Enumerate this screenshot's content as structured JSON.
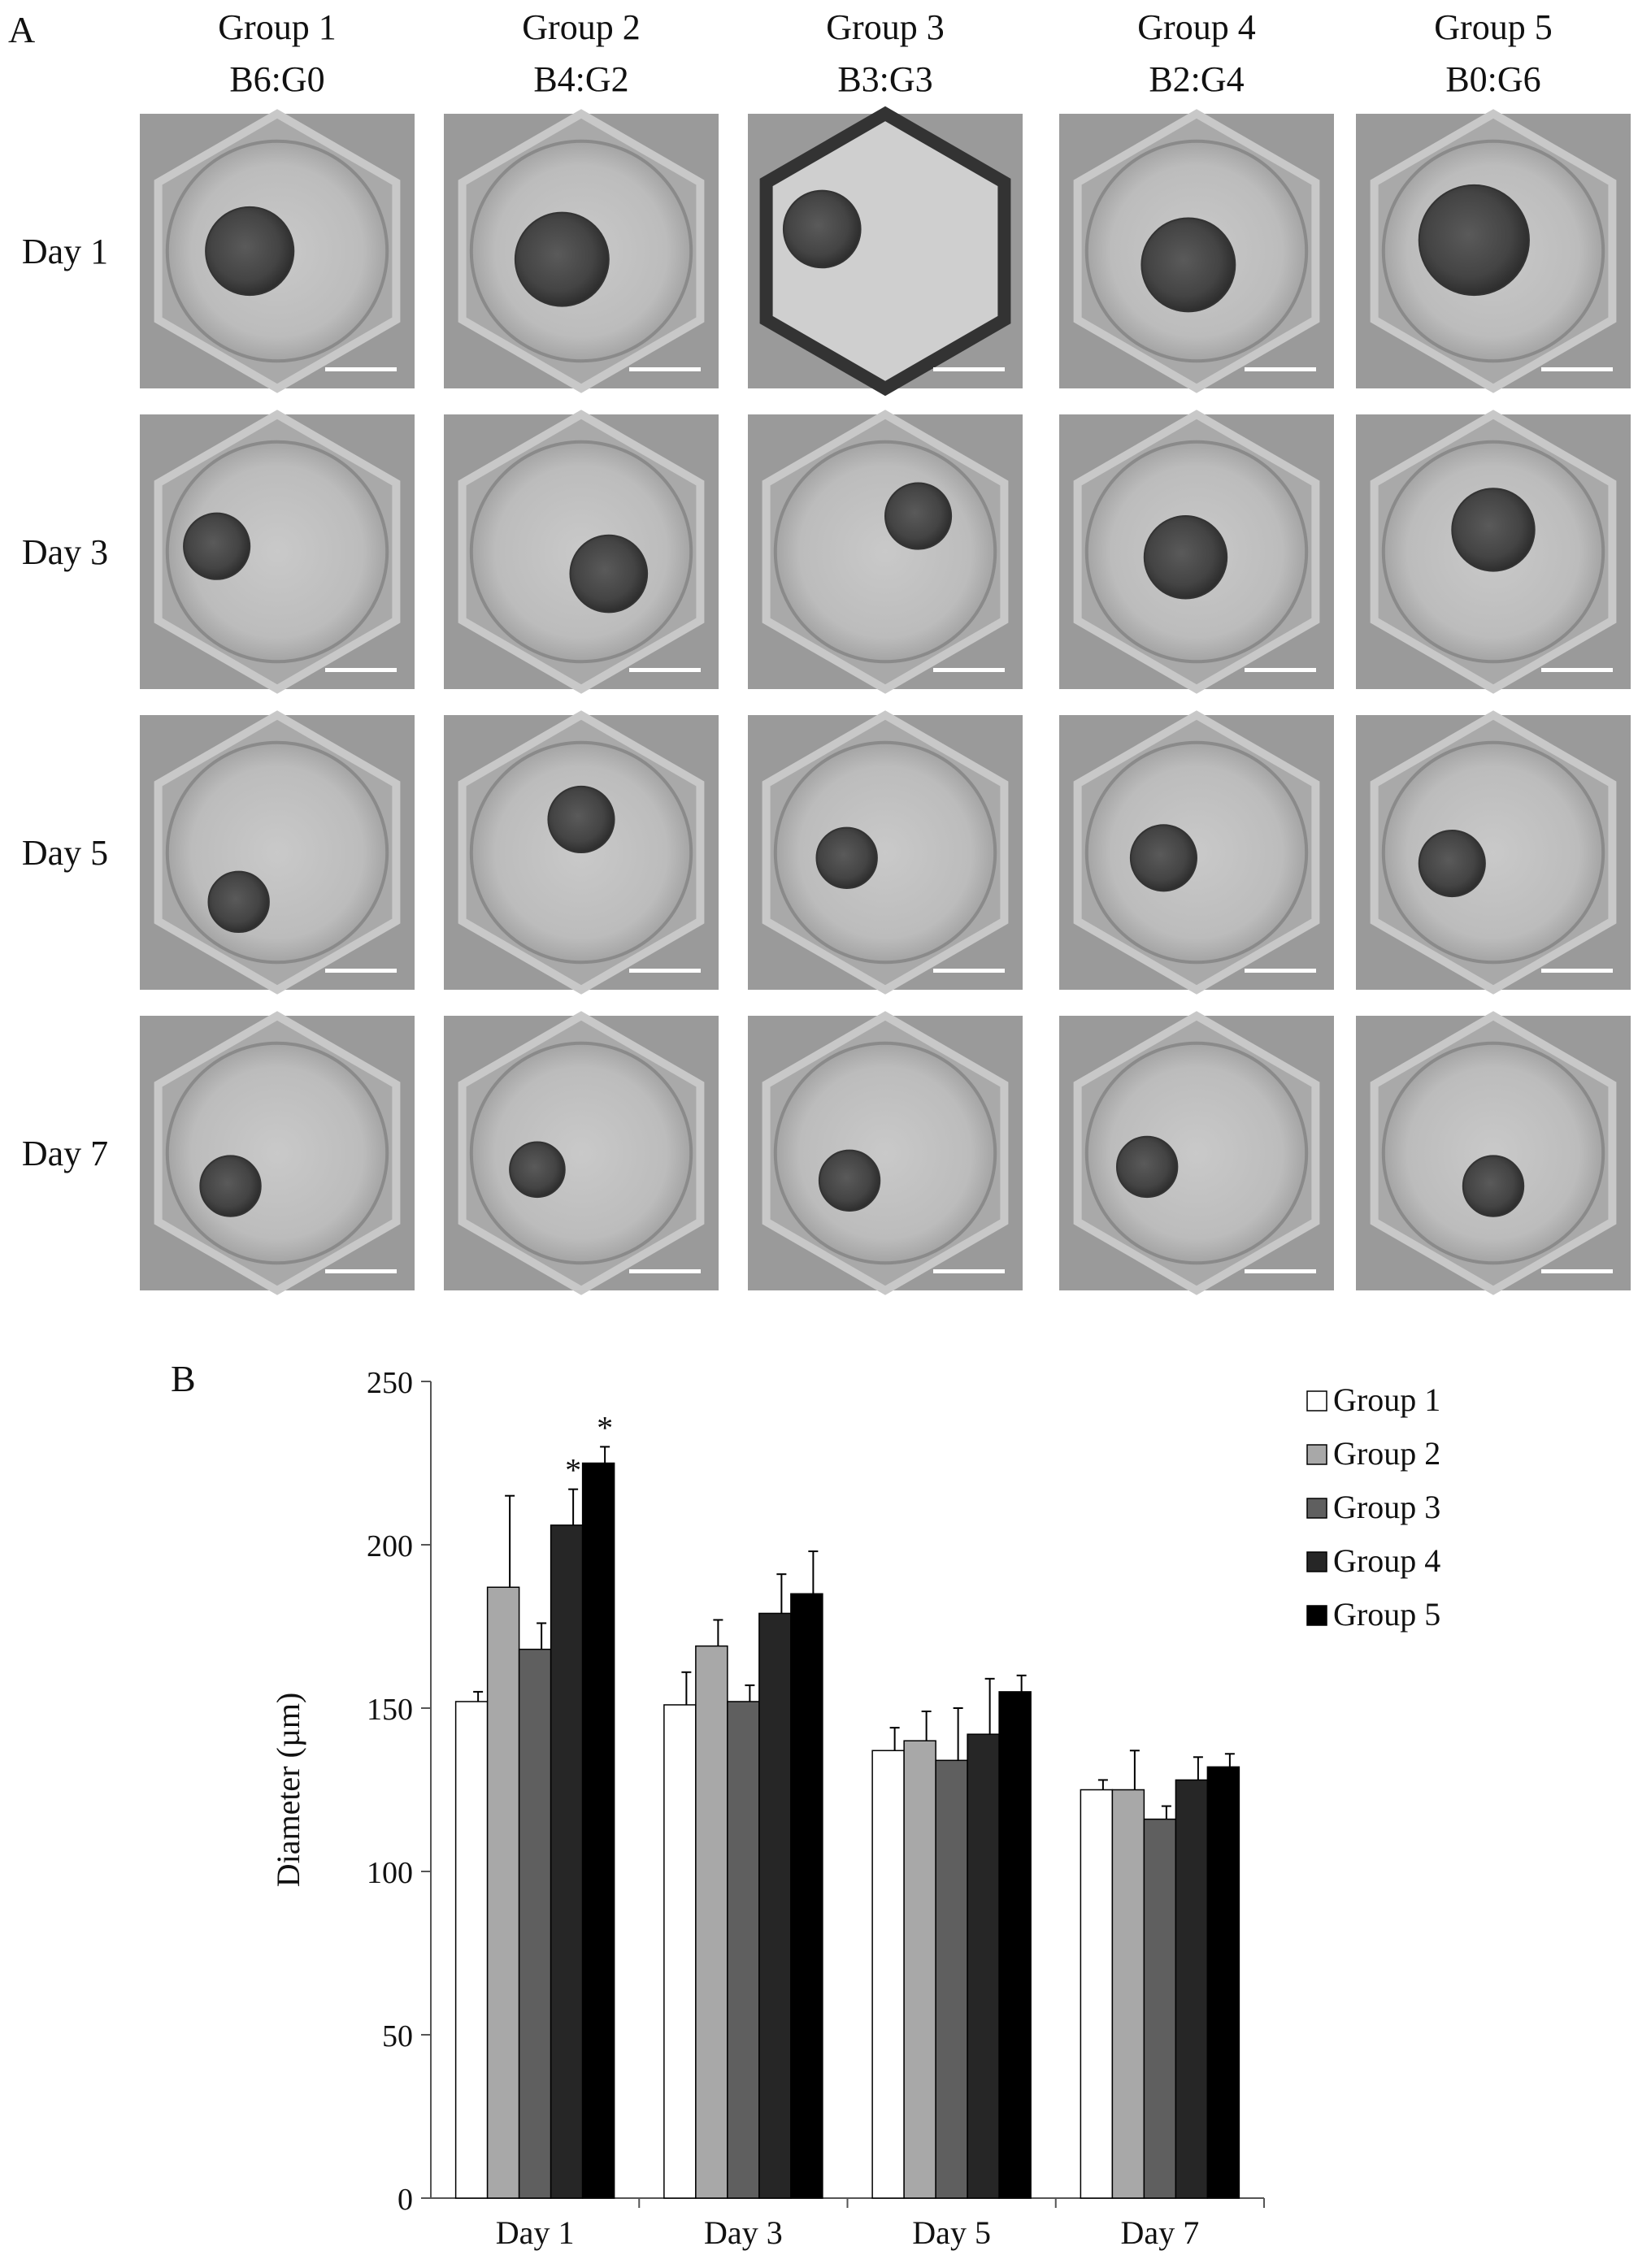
{
  "panel_a": {
    "label": "A",
    "columns": [
      {
        "title": "Group 1",
        "ratio": "B6:G0"
      },
      {
        "title": "Group 2",
        "ratio": "B4:G2"
      },
      {
        "title": "Group 3",
        "ratio": "B3:G3"
      },
      {
        "title": "Group 4",
        "ratio": "B2:G4"
      },
      {
        "title": "Group 5",
        "ratio": "B0:G6"
      }
    ],
    "rows": [
      "Day 1",
      "Day 3",
      "Day 5",
      "Day 7"
    ]
  },
  "chart_data": {
    "type": "bar",
    "panel_label": "B",
    "categories": [
      "Day 1",
      "Day 3",
      "Day 5",
      "Day 7"
    ],
    "series": [
      {
        "name": "Group 1",
        "color": "#ffffff",
        "values": [
          152,
          151,
          137,
          125
        ],
        "errors": [
          3,
          10,
          7,
          3
        ]
      },
      {
        "name": "Group 2",
        "color": "#a8a8a8",
        "values": [
          187,
          169,
          140,
          125
        ],
        "errors": [
          28,
          8,
          9,
          12
        ]
      },
      {
        "name": "Group 3",
        "color": "#5f5f5f",
        "values": [
          168,
          152,
          134,
          116
        ],
        "errors": [
          8,
          5,
          16,
          4
        ]
      },
      {
        "name": "Group 4",
        "color": "#262626",
        "values": [
          206,
          179,
          142,
          128
        ],
        "errors": [
          11,
          12,
          17,
          7
        ]
      },
      {
        "name": "Group 5",
        "color": "#000000",
        "values": [
          225,
          185,
          155,
          132
        ],
        "errors": [
          5,
          13,
          5,
          4
        ]
      }
    ],
    "significance": [
      {
        "category": "Day 1",
        "series": "Group 4",
        "mark": "*"
      },
      {
        "category": "Day 1",
        "series": "Group 5",
        "mark": "*"
      }
    ],
    "ylabel": "Diameter (µm)",
    "xlabel": "",
    "ylim": [
      0,
      250
    ],
    "yticks": [
      0,
      50,
      100,
      150,
      200,
      250
    ],
    "grid": false,
    "legend_position": "top-right"
  }
}
